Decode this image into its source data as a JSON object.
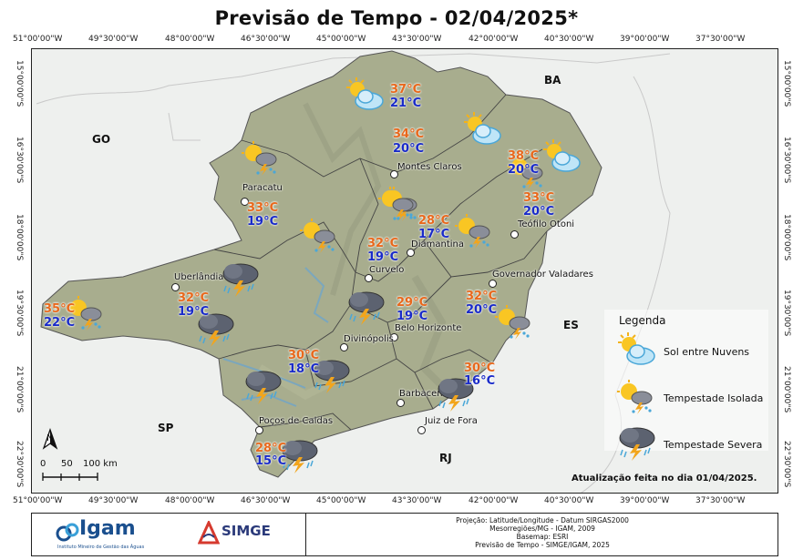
{
  "title": "Previsão de Tempo - 02/04/2025*",
  "coords": {
    "top": [
      "51°00'00\"W",
      "49°30'00\"W",
      "48°00'00\"W",
      "46°30'00\"W",
      "45°00'00\"W",
      "43°30'00\"W",
      "42°00'00\"W",
      "40°30'00\"W",
      "39°00'00\"W",
      "37°30'00\"W"
    ],
    "bottom": [
      "51°00'00\"W",
      "49°30'00\"W",
      "48°00'00\"W",
      "46°30'00\"W",
      "45°00'00\"W",
      "43°30'00\"W",
      "42°00'00\"W",
      "40°30'00\"W",
      "39°00'00\"W",
      "37°30'00\"W"
    ],
    "left": [
      "15°00'00\"S",
      "16°30'00\"S",
      "18°00'00\"S",
      "19°30'00\"S",
      "21°00'00\"S",
      "22°30'00\"S"
    ],
    "right": [
      "15°00'00\"S",
      "16°30'00\"S",
      "18°00'00\"S",
      "19°30'00\"S",
      "21°00'00\"S",
      "22°30'00\"S"
    ]
  },
  "states": [
    "GO",
    "BA",
    "ES",
    "SP",
    "RJ"
  ],
  "cities": [
    "Montes Claros",
    "Paracatu",
    "Teófilo Otoni",
    "Diamantina",
    "Uberlândia",
    "Curvelo",
    "Governador Valadares",
    "Belo Horizonte",
    "Divinópolis",
    "Barbacena",
    "Poços de Caldas",
    "Juiz de Fora"
  ],
  "forecasts": [
    {
      "icon": "sun-cloud",
      "max": "37°C",
      "min": "21°C"
    },
    {
      "icon": "sun-cloud",
      "max": "",
      "min": ""
    },
    {
      "icon": "isolated-storm",
      "max": "34°C",
      "min": "20°C"
    },
    {
      "icon": "sun-cloud",
      "max": "38°C",
      "min": "20°C"
    },
    {
      "icon": "isolated-storm",
      "max": "33°C",
      "min": "19°C"
    },
    {
      "icon": "isolated-storm",
      "max": "",
      "min": ""
    },
    {
      "icon": "isolated-storm",
      "max": "28°C",
      "min": "17°C"
    },
    {
      "icon": "isolated-storm",
      "max": "33°C",
      "min": "20°C"
    },
    {
      "icon": "isolated-storm",
      "max": "32°C",
      "min": "19°C"
    },
    {
      "icon": "severe-storm",
      "max": "32°C",
      "min": "19°C"
    },
    {
      "icon": "isolated-storm",
      "max": "35°C",
      "min": "22°C"
    },
    {
      "icon": "severe-storm",
      "max": "",
      "min": ""
    },
    {
      "icon": "severe-storm",
      "max": "29°C",
      "min": "19°C"
    },
    {
      "icon": "isolated-storm",
      "max": "32°C",
      "min": "20°C"
    },
    {
      "icon": "severe-storm",
      "max": "30°C",
      "min": "18°C"
    },
    {
      "icon": "severe-storm",
      "max": "",
      "min": ""
    },
    {
      "icon": "severe-storm",
      "max": "30°C",
      "min": "16°C"
    },
    {
      "icon": "severe-storm",
      "max": "28°C",
      "min": "15°C"
    }
  ],
  "legend": {
    "title": "Legenda",
    "items": [
      {
        "icon": "sun-cloud",
        "label": "Sol entre Nuvens"
      },
      {
        "icon": "isolated-storm",
        "label": "Tempestade Isolada"
      },
      {
        "icon": "severe-storm",
        "label": "Tempestade Severa"
      }
    ]
  },
  "update_note": "Atualização feita no dia 01/04/2025.",
  "scale": {
    "labels": [
      "0",
      "50",
      "100 km"
    ],
    "north": "N"
  },
  "footer": {
    "igam": "Igam",
    "igam_sub": "Instituto Mineiro de Gestão das Águas",
    "simge": "SIMGE",
    "credits": [
      "Projeção: Latitude/Longitude - Datum SIRGAS2000",
      "Mesorregiões/MG - IGAM, 2009",
      "Basemap: ESRI",
      "Previsão de Tempo - SIMGE/IGAM, 2025"
    ]
  },
  "colors": {
    "max_temp": "#e8681c",
    "min_temp": "#1a2bc9",
    "state_fill": "#a8ad8e",
    "outside_fill": "#eef0ee"
  }
}
